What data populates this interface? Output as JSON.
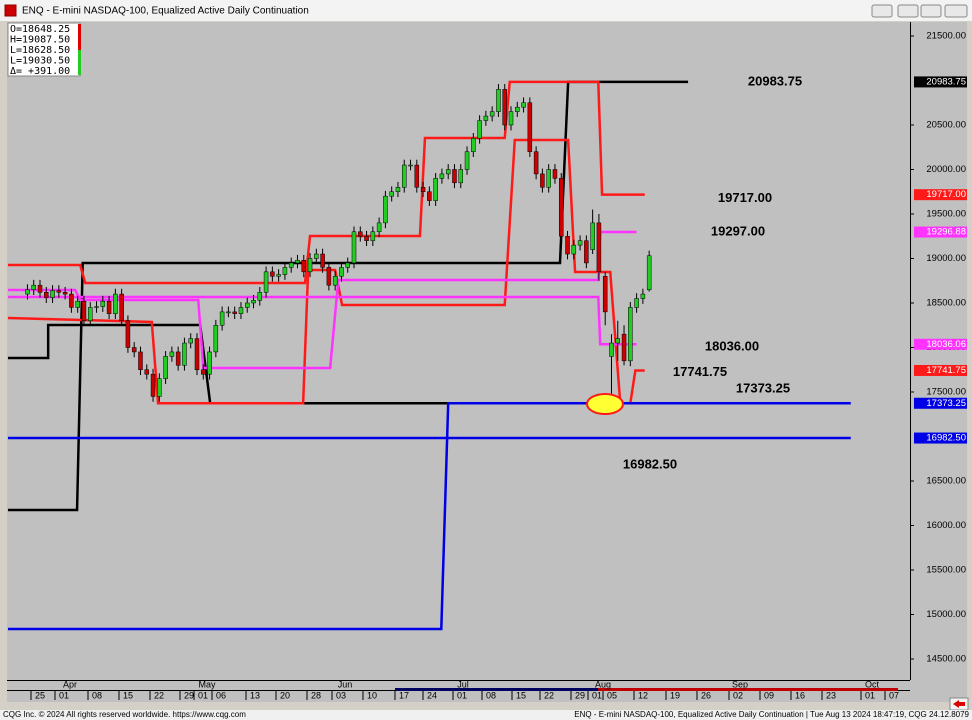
{
  "window": {
    "title": "ENQ - E-mini NASDAQ-100, Equalized Active Daily Continuation"
  },
  "chart": {
    "info": [
      "O=18648.25",
      "H=19087.50",
      "L=18628.50",
      "L=19030.50",
      "Δ= +391.00"
    ],
    "ylim": [
      14264,
      21657
    ],
    "yticks": [
      {
        "value": 21500,
        "label": "21500.00"
      },
      {
        "value": 20500,
        "label": "20500.00"
      },
      {
        "value": 20000,
        "label": "20000.00"
      },
      {
        "value": 19500,
        "label": "19500.00"
      },
      {
        "value": 19000,
        "label": "19000.00"
      },
      {
        "value": 18500,
        "label": "18500.00"
      },
      {
        "value": 18000,
        "label": "18000.00"
      },
      {
        "value": 17500,
        "label": "17500.00"
      },
      {
        "value": 16500,
        "label": "16500.00"
      },
      {
        "value": 16000,
        "label": "16000.00"
      },
      {
        "value": 15500,
        "label": "15500.00"
      },
      {
        "value": 15000,
        "label": "15000.00"
      },
      {
        "value": 14500,
        "label": "14500.00"
      }
    ],
    "candles": [
      [
        18600,
        18710,
        18540,
        18650
      ],
      [
        18650,
        18760,
        18590,
        18700
      ],
      [
        18700,
        18760,
        18560,
        18620
      ],
      [
        18620,
        18680,
        18500,
        18560
      ],
      [
        18560,
        18700,
        18500,
        18640
      ],
      [
        18640,
        18700,
        18560,
        18620
      ],
      [
        18620,
        18680,
        18540,
        18600
      ],
      [
        18600,
        18660,
        18390,
        18450
      ],
      [
        18450,
        18580,
        18390,
        18520
      ],
      [
        18520,
        18580,
        18240,
        18300
      ],
      [
        18300,
        18510,
        18240,
        18450
      ],
      [
        18450,
        18520,
        18390,
        18460
      ],
      [
        18460,
        18580,
        18400,
        18520
      ],
      [
        18520,
        18580,
        18320,
        18380
      ],
      [
        18380,
        18660,
        18320,
        18600
      ],
      [
        18600,
        18660,
        18240,
        18300
      ],
      [
        18300,
        18360,
        17940,
        18000
      ],
      [
        18000,
        18060,
        17890,
        17950
      ],
      [
        17950,
        18010,
        17690,
        17750
      ],
      [
        17750,
        17810,
        17640,
        17700
      ],
      [
        17700,
        17760,
        17390,
        17450
      ],
      [
        17450,
        17710,
        17390,
        17650
      ],
      [
        17650,
        17960,
        17590,
        17900
      ],
      [
        17900,
        18010,
        17840,
        17950
      ],
      [
        17950,
        18010,
        17740,
        17800
      ],
      [
        17800,
        18110,
        17740,
        18050
      ],
      [
        18050,
        18160,
        17990,
        18100
      ],
      [
        18100,
        18160,
        17690,
        17750
      ],
      [
        17750,
        17810,
        17640,
        17700
      ],
      [
        17700,
        18010,
        17640,
        17950
      ],
      [
        17950,
        18310,
        17890,
        18250
      ],
      [
        18250,
        18460,
        18190,
        18400
      ],
      [
        18400,
        18460,
        18340,
        18400
      ],
      [
        18400,
        18460,
        18320,
        18380
      ],
      [
        18380,
        18510,
        18320,
        18450
      ],
      [
        18450,
        18560,
        18390,
        18500
      ],
      [
        18500,
        18590,
        18440,
        18530
      ],
      [
        18530,
        18680,
        18470,
        18620
      ],
      [
        18620,
        18910,
        18560,
        18850
      ],
      [
        18850,
        18910,
        18740,
        18800
      ],
      [
        18800,
        18880,
        18740,
        18820
      ],
      [
        18820,
        18960,
        18760,
        18900
      ],
      [
        18900,
        19010,
        18840,
        18950
      ],
      [
        18950,
        19040,
        18890,
        18980
      ],
      [
        18980,
        19040,
        18790,
        18850
      ],
      [
        18850,
        19060,
        18790,
        19000
      ],
      [
        19000,
        19110,
        18940,
        19050
      ],
      [
        19050,
        19110,
        18840,
        18900
      ],
      [
        18900,
        18960,
        18640,
        18700
      ],
      [
        18700,
        18860,
        18640,
        18800
      ],
      [
        18800,
        18960,
        18740,
        18900
      ],
      [
        18900,
        19010,
        18840,
        18950
      ],
      [
        18950,
        19360,
        18890,
        19300
      ],
      [
        19300,
        19360,
        19190,
        19250
      ],
      [
        19250,
        19310,
        19140,
        19200
      ],
      [
        19200,
        19360,
        19140,
        19300
      ],
      [
        19300,
        19460,
        19240,
        19400
      ],
      [
        19400,
        19760,
        19340,
        19700
      ],
      [
        19700,
        19810,
        19640,
        19750
      ],
      [
        19750,
        19860,
        19690,
        19800
      ],
      [
        19800,
        20110,
        19740,
        20050
      ],
      [
        20050,
        20110,
        19990,
        20050
      ],
      [
        20050,
        20110,
        19740,
        19800
      ],
      [
        19800,
        19860,
        19690,
        19750
      ],
      [
        19750,
        19810,
        19590,
        19650
      ],
      [
        19650,
        19960,
        19590,
        19900
      ],
      [
        19900,
        20010,
        19840,
        19950
      ],
      [
        19950,
        20060,
        19890,
        20000
      ],
      [
        20000,
        20060,
        19790,
        19850
      ],
      [
        19850,
        20060,
        19790,
        20000
      ],
      [
        20000,
        20260,
        19940,
        20200
      ],
      [
        20200,
        20410,
        20140,
        20350
      ],
      [
        20350,
        20610,
        20290,
        20550
      ],
      [
        20550,
        20660,
        20490,
        20600
      ],
      [
        20600,
        20710,
        20540,
        20650
      ],
      [
        20650,
        20960,
        20590,
        20900
      ],
      [
        20900,
        20960,
        20440,
        20500
      ],
      [
        20500,
        20710,
        20440,
        20650
      ],
      [
        20650,
        20760,
        20590,
        20700
      ],
      [
        20700,
        20810,
        20640,
        20750
      ],
      [
        20750,
        20810,
        20140,
        20200
      ],
      [
        20200,
        20260,
        19890,
        19950
      ],
      [
        19950,
        20010,
        19740,
        19800
      ],
      [
        19800,
        20060,
        19740,
        20000
      ],
      [
        20000,
        20060,
        19840,
        19900
      ],
      [
        19900,
        19960,
        19190,
        19250
      ],
      [
        19250,
        19310,
        18990,
        19050
      ],
      [
        19050,
        19210,
        18990,
        19150
      ],
      [
        19150,
        19260,
        19090,
        19200
      ],
      [
        19200,
        19260,
        18890,
        18950
      ],
      [
        19100,
        19550,
        19050,
        19400
      ],
      [
        19400,
        19500,
        18750,
        18850
      ],
      [
        18800,
        18850,
        18250,
        18400
      ],
      [
        17900,
        18150,
        17380,
        18050
      ],
      [
        18050,
        18300,
        17850,
        18100
      ],
      [
        18150,
        18250,
        17800,
        17850
      ],
      [
        17850,
        18510,
        17790,
        18450
      ],
      [
        18450,
        18610,
        18390,
        18550
      ],
      [
        18550,
        18660,
        18490,
        18600
      ],
      [
        18648.25,
        19087.5,
        18628.5,
        19030.5
      ]
    ],
    "lines": [
      {
        "color": "#000000",
        "x": [
          -3.1,
          3.3,
          3.3,
          27.5,
          29.1,
          93.1
        ],
        "values": [
          17882,
          17882,
          18253,
          18253,
          17373.25,
          17373.25
        ]
      },
      {
        "color": "#000000",
        "x": [
          -3.1,
          7.9,
          8.8,
          84.8,
          86.1,
          105.2
        ],
        "values": [
          16174,
          16174,
          18949,
          18949,
          20983.75,
          20983.75
        ]
      },
      {
        "color": "#ff1a1a",
        "x": [
          -3.1,
          8.4,
          9.2,
          44.2,
          45,
          62.5,
          63.3,
          76,
          76.8,
          90.9,
          91.5,
          98.3
        ],
        "values": [
          18927,
          18927,
          18725,
          18725,
          19253,
          19253,
          20354,
          20354,
          20983.75,
          20983.75,
          19717,
          19717
        ]
      },
      {
        "color": "#ff1a1a",
        "x": [
          -3.1,
          19.8,
          20.8,
          43.9,
          44.7,
          49,
          50.1,
          76,
          77.6,
          86.1,
          87.2,
          92.8,
          94.4,
          96,
          96.8,
          98.3
        ],
        "values": [
          18331,
          18287,
          17373.25,
          17373.25,
          18871,
          18871,
          18478,
          18478,
          20331,
          20331,
          18848,
          18848,
          17373.25,
          17373.25,
          17741.75,
          17741.75
        ]
      },
      {
        "color": "#ff33ff",
        "x": [
          -3.1,
          7.6,
          8.4,
          27.2,
          28,
          48.2,
          49.5,
          90.9,
          91.2,
          97
        ],
        "values": [
          18646,
          18646,
          18534,
          18534,
          17770,
          17770,
          18758,
          18758,
          19297,
          19297
        ]
      },
      {
        "color": "#ff33ff",
        "x": [
          -3.1,
          90.9,
          91.2,
          97
        ],
        "values": [
          18567,
          18567,
          18036,
          18036
        ]
      },
      {
        "color": "#0000e6",
        "x": [
          -3.1,
          131.1
        ],
        "values": [
          16982.5,
          16982.5
        ]
      },
      {
        "color": "#0000e6",
        "x": [
          -3.1,
          65.9,
          67,
          131.1
        ],
        "values": [
          14837,
          14837,
          17373.25,
          17373.25
        ]
      }
    ],
    "level_labels": [
      {
        "value": 20983.75,
        "label": "20983.75"
      },
      {
        "value": 19717,
        "label": "19717.00"
      },
      {
        "value": 19297,
        "label": "19297.00"
      },
      {
        "value": 18036,
        "label": "18036.00"
      },
      {
        "value": 17741.75,
        "label": "17741.75"
      },
      {
        "value": 17373.25,
        "label": "17373.25"
      },
      {
        "value": 16982.5,
        "label": "16982.50"
      }
    ],
    "price_markers": [
      {
        "value": 20983.75,
        "label": "20983.75",
        "color": "#000000"
      },
      {
        "value": 19717,
        "label": "19717.00",
        "color": "#ff1a1a"
      },
      {
        "value": 19296.88,
        "label": "19296.88",
        "color": "#ff33ff"
      },
      {
        "value": 18036.06,
        "label": "18036.06",
        "color": "#ff33ff"
      },
      {
        "value": 17741.75,
        "label": "17741.75",
        "color": "#ff1a1a"
      },
      {
        "value": 17373.25,
        "label": "17373.25",
        "color": "#0000e6"
      },
      {
        "value": 16982.5,
        "label": "16982.50",
        "color": "#0000e6"
      }
    ],
    "months": [
      "Apr",
      "May",
      "Jun",
      "Jul",
      "Aug",
      "Sep",
      "Oct"
    ],
    "days": [
      "25",
      "01",
      "08",
      "15",
      "22",
      "29",
      "01",
      "06",
      "13",
      "20",
      "28",
      "03",
      "10",
      "17",
      "24",
      "01",
      "08",
      "15",
      "22",
      "29",
      "01",
      "05",
      "12",
      "19",
      "26",
      "02",
      "09",
      "16",
      "23",
      "01",
      "07"
    ]
  },
  "status": {
    "left": "CQG Inc. © 2024 All rights reserved worldwide. https://www.cqg.com",
    "right": "ENQ - E-mini NASDAQ-100, Equalized Active Daily Continuation | Tue Aug 13 2024 18:47:19, CQG 24.12.8079"
  }
}
